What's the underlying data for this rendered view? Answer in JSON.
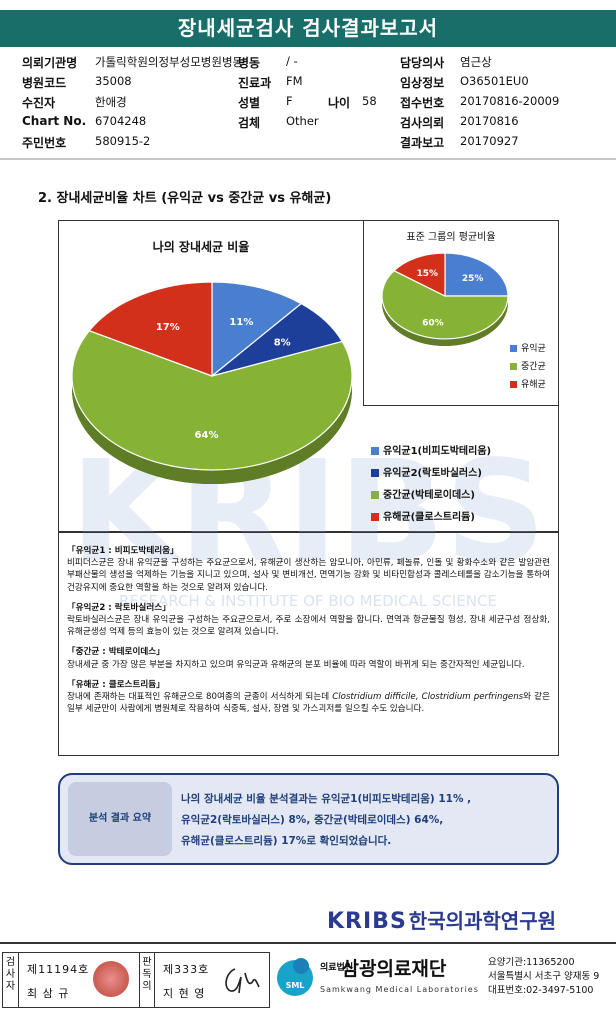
{
  "report_title": "장내세균검사 검사결과보고서",
  "info": {
    "institution_label": "의뢰기관명",
    "institution_value": "가톨릭학원의정부성모병원병동",
    "ward_label": "병동",
    "ward_value": "/ -",
    "doctor_label": "담당의사",
    "doctor_value": "염근상",
    "hospital_code_label": "병원코드",
    "hospital_code_value": "35008",
    "dept_label": "진료과",
    "dept_value": "FM",
    "clinical_label": "임상정보",
    "clinical_value": "O36501EU0",
    "patient_label": "수진자",
    "patient_value": "한애경",
    "sex_label": "성별",
    "sex_value": "F",
    "age_label": "나이",
    "age_value": "58",
    "receipt_label": "접수번호",
    "receipt_value": "20170816-20009",
    "chart_label": "Chart No.",
    "chart_value": "6704248",
    "specimen_label": "검체",
    "specimen_value": "Other",
    "request_label": "검사의뢰",
    "request_value": "20170816",
    "rrn_label": "주민번호",
    "rrn_value": "580915-2",
    "report_label": "결과보고",
    "report_value": "20170927"
  },
  "section_title": "2. 장내세균비율 차트 (유익균 vs 중간균 vs 유해균)",
  "chart_data": [
    {
      "type": "pie",
      "title": "나의 장내세균 비율",
      "categories": [
        "유익균1(비피도박테리움)",
        "유익균2(락토바실러스)",
        "중간균(박테로이데스)",
        "유해균(클로스트리듐)"
      ],
      "values": [
        11,
        8,
        64,
        17
      ],
      "labels": [
        "11%",
        "8%",
        "64%",
        "17%"
      ],
      "colors": [
        "#4a7fd0",
        "#1d3f9a",
        "#86b336",
        "#d2301b"
      ],
      "legend_position": "bottom-right"
    },
    {
      "type": "pie",
      "title": "표준 그룹의 평균비율",
      "categories": [
        "유익균",
        "중간균",
        "유해균"
      ],
      "values": [
        25,
        60,
        15
      ],
      "labels": [
        "25%",
        "60%",
        "15%"
      ],
      "colors": [
        "#4a7fd0",
        "#86b336",
        "#d2301b"
      ],
      "legend_position": "bottom-right"
    }
  ],
  "descriptions": [
    {
      "head": "「유익균1 : 비피도박테리움」",
      "body": "비피더스균은 장내 유익균을 구성하는 주요균으로서, 유해균이 생산하는 암모니아, 아민류, 페놀류, 인돌 및 황화수소와 같은 발암관련 부패산물의 생성을 억제하는 기능을 지니고 있으며, 설사 및 변비개선, 면역기능 강화 및 비타민합성과 콜레스테롤을 감소기능을 통하여 건강유지에 중요한 역할을 하는 것으로 알려져 있습니다."
    },
    {
      "head": "「유익균2 : 락토바실러스」",
      "body": "락토바실러스균은 장내 유익균을 구성하는 주요균으로서, 주로 소장에서 역할을 합니다. 면역과 항균물질 형성, 장내 세균구성 정상화, 유해균생성 억제 등의 효능이 있는 것으로 알려져 있습니다."
    },
    {
      "head": "「중간균 : 박테로이데스」",
      "body": "장내세균 중 가장 많은 부분을 차지하고 있으며 유익균과 유해균의 분포 비율에 따라 역할이 바뀌게 되는 중간자적인 세균입니다."
    },
    {
      "head": "「유해균 : 클로스트리듐」",
      "body_pre": "장내에 존재하는 대표적인 유해균으로 80여종의 균종이 서식하게 되는데 ",
      "body_italic": "Clostridium difficile, Clostridium perfringens",
      "body_post": "와 같은 일부 세균만이 사람에게 병원체로 작용하여 식중독, 설사, 장염 및 가스괴저를 일으킬 수도 있습니다."
    }
  ],
  "watermark": {
    "text": "KRIBS",
    "subtitle": "RESEARCH & INSTITUTE OF BIO MEDICAL SCIENCE"
  },
  "summary": {
    "label": "분석 결과 요약",
    "line1": "나의 장내세균 비율 분석결과는 유익균1(비피도박테리움) 11% ,",
    "line2": "유익균2(락토바실러스) 8%, 중간균(박테로이데스) 64%,",
    "line3": "유해균(클로스트리듐) 17%로 확인되었습니다."
  },
  "kribs": {
    "en": "KRIBS",
    "ko": "한국의과학연구원"
  },
  "footer": {
    "examiner_label": "검사자",
    "examiner_no": "제11194호",
    "examiner_name": "최 삼 규",
    "reviewer_label": "판독의",
    "reviewer_no": "제333호",
    "reviewer_name": "지 현 영",
    "lab_corp": "의료법인",
    "lab_name": "삼광의료재단",
    "lab_eng": "Samkwang Medical Laboratories",
    "lab_logo": "SML",
    "code": "요양기관:11365200",
    "address": "서울특별시 서초구 양재동 9",
    "phone": "대표번호:02-3497-5100"
  }
}
